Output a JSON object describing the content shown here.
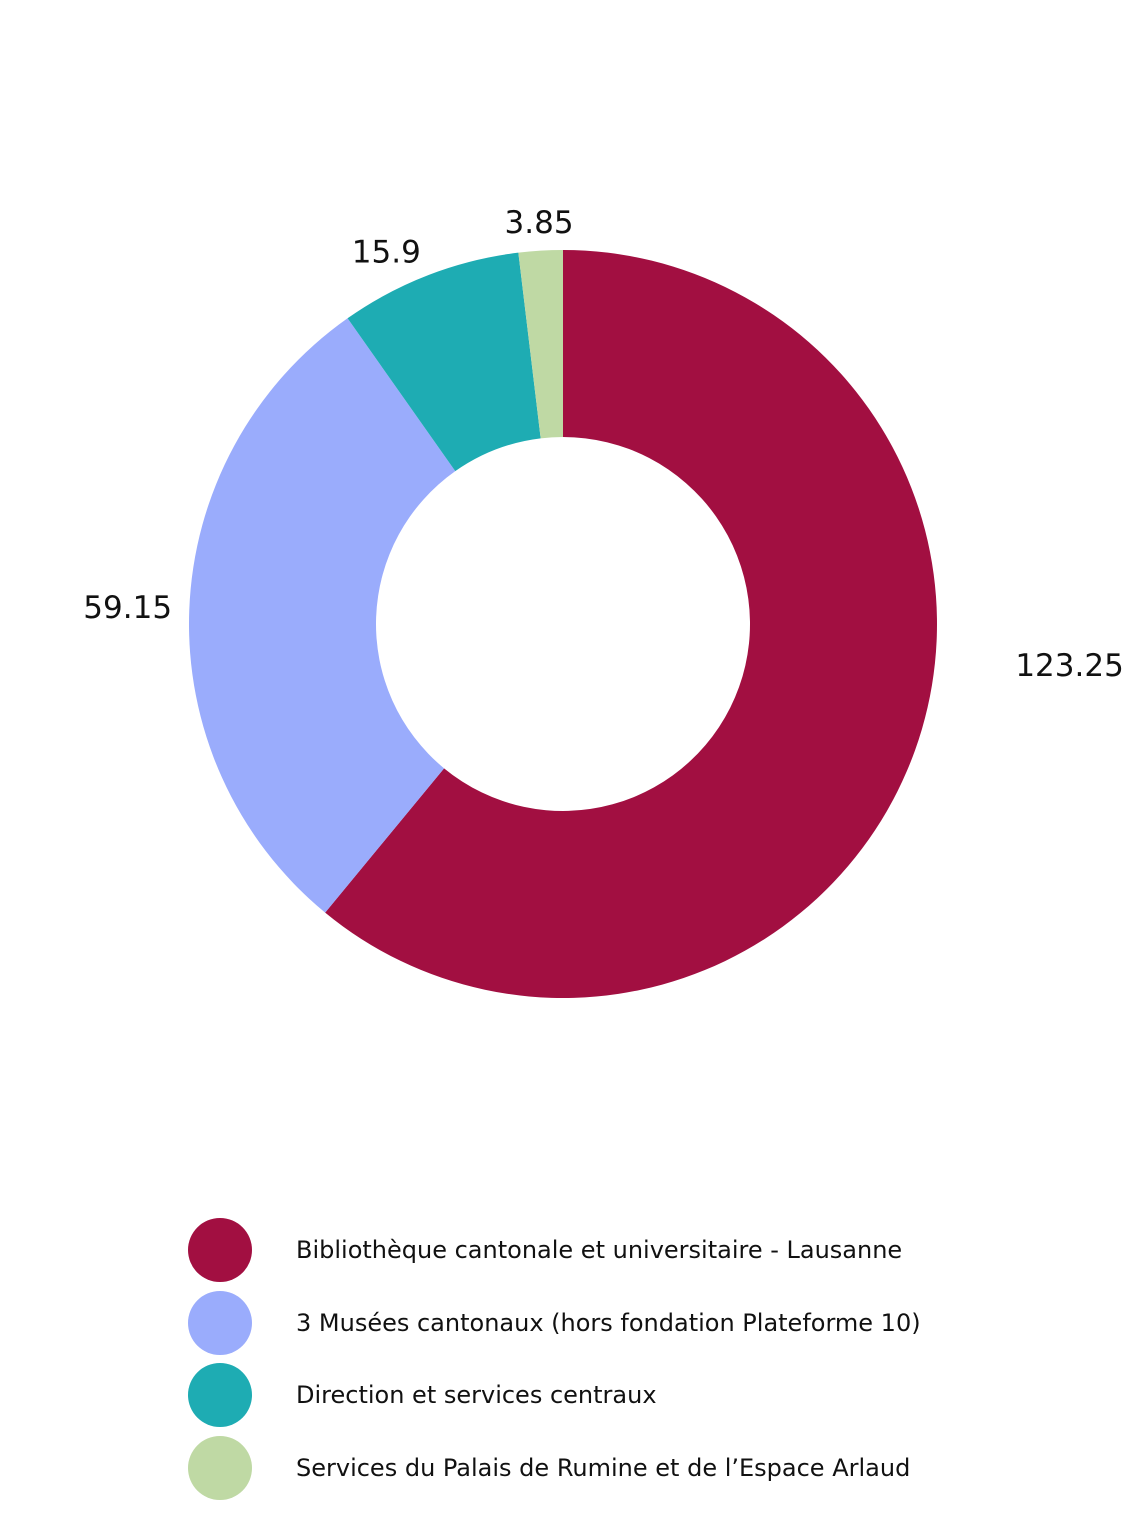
{
  "chart_data": {
    "type": "pie",
    "donut": true,
    "title": "",
    "series": [
      {
        "name": "Bibliothèque cantonale et universitaire - Lausanne",
        "value": 123.25,
        "label": "123.25",
        "color": "#A20F41"
      },
      {
        "name": "3 Musées cantonaux (hors fondation Plateforme 10)",
        "value": 59.15,
        "label": "59.15",
        "color": "#9AACFC"
      },
      {
        "name": "Direction et services centraux",
        "value": 15.9,
        "label": "15.9",
        "color": "#1EACB3"
      },
      {
        "name": "Services du Palais de Rumine et de l’Espace Arlaud",
        "value": 3.85,
        "label": "3.85",
        "color": "#BFD9A4"
      }
    ],
    "start_angle": "12 o'clock",
    "direction": "clockwise",
    "legend": "bottom"
  }
}
